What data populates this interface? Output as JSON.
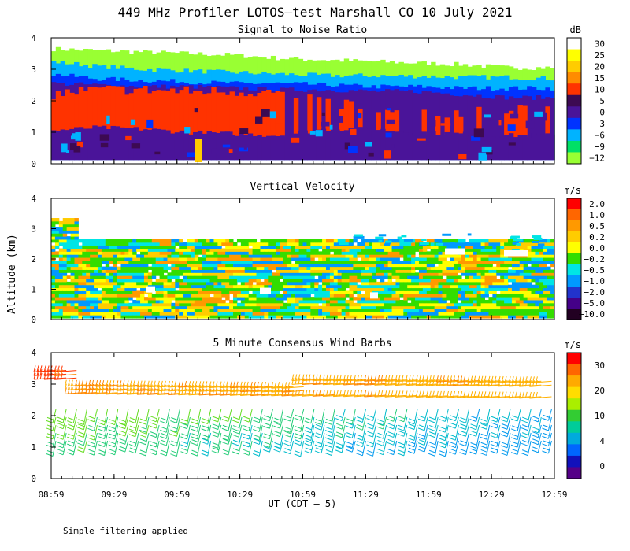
{
  "figure": {
    "title": "449 MHz Profiler LOTOS—test Marshall CO 10 July 2021",
    "ylabel": "Altitude (km)",
    "xlabel": "UT  (CDT — 5)",
    "footnote": "Simple filtering applied"
  },
  "chart_data": [
    {
      "type": "heatmap",
      "title": "Signal to Noise Ratio",
      "ylim": [
        0,
        4
      ],
      "yticks": [
        "0",
        "1",
        "2",
        "3",
        "4"
      ],
      "xticks": [
        "08:59",
        "09:29",
        "09:59",
        "10:29",
        "10:59",
        "11:29",
        "11:59",
        "12:29",
        "12:59"
      ],
      "colorbar": {
        "unit": "dB",
        "labels": [
          "30",
          "25",
          "20",
          "15",
          "10",
          "5",
          "0",
          "−3",
          "−6",
          "−9",
          "−12"
        ],
        "colors": [
          "#ffffff",
          "#ffff00",
          "#ffcc00",
          "#ff8c00",
          "#ff3300",
          "#3d0a52",
          "#4a1499",
          "#0033ff",
          "#00b3ff",
          "#00e066",
          "#99ff33"
        ]
      },
      "layers": [
        {
          "level": "−12",
          "color": "#99ff33",
          "top_km": [
            3.65,
            3.6,
            3.55,
            3.5,
            3.45,
            3.35,
            3.3,
            3.25,
            3.2,
            3.15,
            3.05,
            3.05
          ]
        },
        {
          "level": "−6",
          "color": "#00b3ff",
          "top_km": [
            3.25,
            3.1,
            3.0,
            2.95,
            2.9,
            2.85,
            2.8,
            2.8,
            2.78,
            2.75,
            2.75,
            2.7
          ]
        },
        {
          "level": "−3",
          "color": "#0033ff",
          "top_km": [
            2.85,
            2.7,
            2.65,
            2.6,
            2.55,
            2.55,
            2.5,
            2.45,
            2.45,
            2.4,
            2.4,
            2.4
          ]
        },
        {
          "level": "0",
          "color": "#4a1499",
          "top_km": [
            2.55,
            2.5,
            2.45,
            2.45,
            2.4,
            2.35,
            2.35,
            2.3,
            2.3,
            2.2,
            2.1,
            2.1
          ]
        },
        {
          "level": "10",
          "color": "#ff3300",
          "top_km": [
            2.2,
            2.35,
            2.35,
            2.3,
            2.3,
            2.25,
            2.0,
            1.7,
            1.6,
            1.6,
            1.7,
            1.75
          ]
        },
        {
          "level": "0",
          "color": "#4a1499",
          "top_km": [
            1.05,
            1.15,
            1.1,
            1.0,
            0.95,
            0.9,
            1.1,
            1.1,
            1.0,
            0.95,
            0.9,
            0.9
          ]
        }
      ]
    },
    {
      "type": "heatmap",
      "title": "Vertical Velocity",
      "ylim": [
        0,
        4
      ],
      "yticks": [
        "0",
        "1",
        "2",
        "3",
        "4"
      ],
      "xticks": [
        "08:59",
        "09:29",
        "09:59",
        "10:29",
        "10:59",
        "11:29",
        "11:59",
        "12:29",
        "12:59"
      ],
      "data_top_km": 2.6,
      "colorbar": {
        "unit": "m/s",
        "labels": [
          "2.0",
          "1.0",
          "0.5",
          "0.2",
          "0.0",
          "−0.2",
          "−0.5",
          "−1.0",
          "−2.0",
          "−5.0",
          "−10.0"
        ],
        "colors": [
          "#ff0000",
          "#ff6600",
          "#ff9900",
          "#ffcc00",
          "#ffff00",
          "#33dd00",
          "#00e5e5",
          "#0099ff",
          "#2233cc",
          "#440088",
          "#220022"
        ]
      }
    },
    {
      "type": "barbs",
      "title": "5 Minute Consensus Wind Barbs",
      "ylim": [
        0,
        4
      ],
      "yticks": [
        "0",
        "1",
        "2",
        "3",
        "4"
      ],
      "xticks": [
        "08:59",
        "09:29",
        "09:59",
        "10:29",
        "10:59",
        "11:29",
        "11:59",
        "12:29",
        "12:59"
      ],
      "interval_minutes": 5,
      "upper_layer_speed_ms": 22,
      "colorbar": {
        "unit": "m/s",
        "labels": [
          "30",
          "20",
          "10",
          "4",
          "0"
        ],
        "colors": [
          "#ff0000",
          "#ff6600",
          "#ffaa00",
          "#ffdd00",
          "#aaee00",
          "#33cc33",
          "#00cc99",
          "#00aadd",
          "#0066ff",
          "#1111bb",
          "#550088"
        ]
      }
    }
  ]
}
